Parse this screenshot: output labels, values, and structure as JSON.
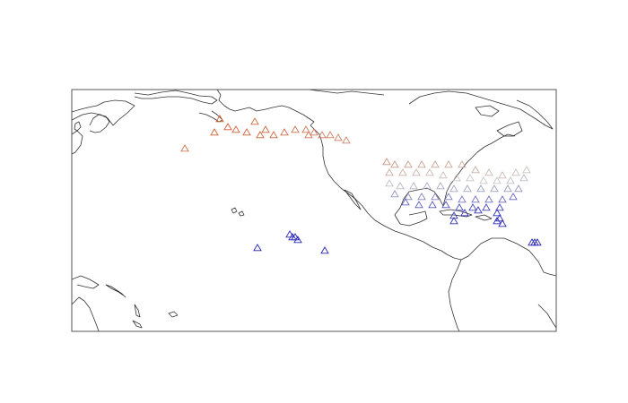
{
  "map": {
    "projection": "plate-carree",
    "lon_range": [
      120,
      300
    ],
    "lat_range": [
      -15,
      75
    ],
    "frame_color": "#555555",
    "coast_color": "#333333",
    "marker": "triangle-outline",
    "color_scale": {
      "low": "#1f1fb4",
      "mid": "#c8c8c8",
      "high": "#d2501e"
    }
  },
  "chart_data": {
    "type": "scatter",
    "xlabel": "",
    "ylabel": "",
    "description_fields": [
      "lon",
      "lat",
      "value"
    ],
    "points": [
      [
        173,
        59,
        0.95
      ],
      [
        181,
        60,
        0.93
      ],
      [
        185,
        59,
        0.92
      ],
      [
        190,
        58,
        0.92
      ],
      [
        195,
        58,
        0.9
      ],
      [
        199,
        59,
        0.88
      ],
      [
        203,
        60,
        0.86
      ],
      [
        207,
        60,
        0.84
      ],
      [
        210,
        59,
        0.82
      ],
      [
        213,
        58,
        0.8
      ],
      [
        216,
        58,
        0.8
      ],
      [
        219,
        57,
        0.79
      ],
      [
        222,
        56,
        0.78
      ],
      [
        178,
        61,
        0.94
      ],
      [
        192,
        60,
        0.91
      ],
      [
        208,
        58,
        0.83
      ],
      [
        175,
        64,
        0.93
      ],
      [
        188,
        63,
        0.91
      ],
      [
        162,
        53,
        0.85
      ],
      [
        237,
        48,
        0.72
      ],
      [
        240,
        47,
        0.7
      ],
      [
        245,
        47,
        0.68
      ],
      [
        250,
        47,
        0.66
      ],
      [
        255,
        47,
        0.66
      ],
      [
        260,
        47,
        0.64
      ],
      [
        265,
        47,
        0.62
      ],
      [
        270,
        45,
        0.6
      ],
      [
        275,
        44,
        0.58
      ],
      [
        280,
        43,
        0.56
      ],
      [
        285,
        44,
        0.54
      ],
      [
        289,
        45,
        0.52
      ],
      [
        238,
        44,
        0.62
      ],
      [
        243,
        44,
        0.6
      ],
      [
        248,
        44,
        0.58
      ],
      [
        253,
        44,
        0.56
      ],
      [
        258,
        43,
        0.55
      ],
      [
        263,
        42,
        0.53
      ],
      [
        268,
        42,
        0.51
      ],
      [
        273,
        41,
        0.5
      ],
      [
        278,
        41,
        0.49
      ],
      [
        283,
        41,
        0.47
      ],
      [
        288,
        42,
        0.46
      ],
      [
        238,
        40,
        0.48
      ],
      [
        242,
        39,
        0.46
      ],
      [
        247,
        39,
        0.44
      ],
      [
        252,
        39,
        0.42
      ],
      [
        257,
        39,
        0.41
      ],
      [
        262,
        38,
        0.4
      ],
      [
        267,
        38,
        0.39
      ],
      [
        272,
        38,
        0.38
      ],
      [
        277,
        38,
        0.37
      ],
      [
        282,
        38,
        0.36
      ],
      [
        286,
        38,
        0.35
      ],
      [
        240,
        36,
        0.34
      ],
      [
        245,
        35,
        0.32
      ],
      [
        250,
        35,
        0.3
      ],
      [
        255,
        35,
        0.29
      ],
      [
        260,
        35,
        0.28
      ],
      [
        265,
        34,
        0.26
      ],
      [
        270,
        34,
        0.24
      ],
      [
        275,
        34,
        0.23
      ],
      [
        280,
        34,
        0.22
      ],
      [
        284,
        35,
        0.21
      ],
      [
        244,
        33,
        0.2
      ],
      [
        249,
        32,
        0.18
      ],
      [
        254,
        32,
        0.17
      ],
      [
        259,
        32,
        0.15
      ],
      [
        264,
        31,
        0.14
      ],
      [
        269,
        31,
        0.12
      ],
      [
        274,
        31,
        0.11
      ],
      [
        279,
        31,
        0.1
      ],
      [
        262,
        28,
        0.08
      ],
      [
        266,
        29,
        0.07
      ],
      [
        271,
        30,
        0.06
      ],
      [
        278,
        29,
        0.05
      ],
      [
        279,
        27,
        0.04
      ],
      [
        280,
        25,
        0.03
      ],
      [
        278,
        26,
        0.04
      ],
      [
        262,
        26,
        0.05
      ],
      [
        291,
        18,
        0.02
      ],
      [
        292,
        18,
        0.02
      ],
      [
        293,
        18,
        0.02
      ],
      [
        201,
        21,
        0.03
      ],
      [
        202,
        20,
        0.03
      ],
      [
        203,
        20,
        0.02
      ],
      [
        204,
        19,
        0.02
      ],
      [
        189,
        16,
        0.01
      ],
      [
        214,
        15,
        0.01
      ]
    ]
  }
}
